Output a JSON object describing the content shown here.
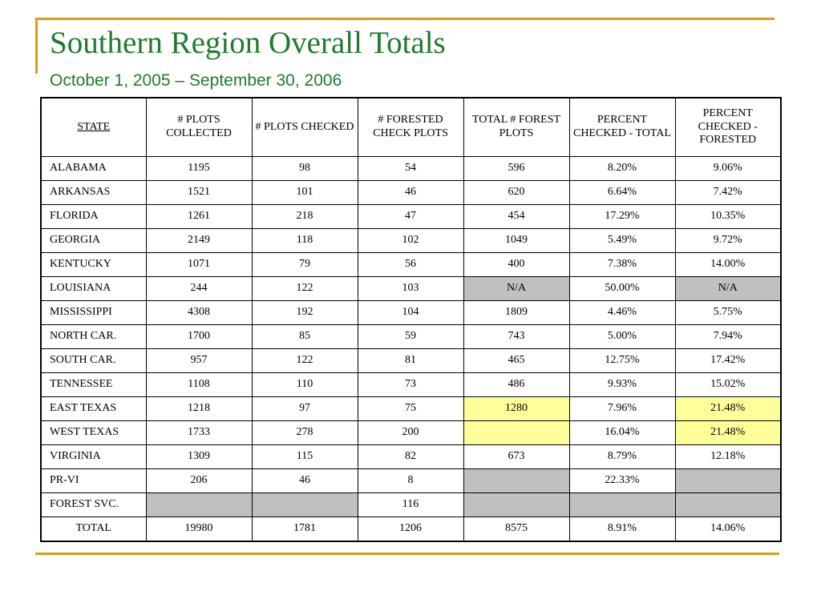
{
  "title": "Southern Region Overall Totals",
  "subtitle": "October 1, 2005 – September 30, 2006",
  "colors": {
    "title": "#1f7a2e",
    "accent_rule": "#d4a017",
    "gray_cell": "#c0c0c0",
    "yellow_cell": "#ffff99"
  },
  "table": {
    "headers": [
      "STATE",
      "# PLOTS COLLECTED",
      "# PLOTS CHECKED",
      "# FORESTED CHECK PLOTS",
      "TOTAL # FOREST PLOTS",
      "PERCENT CHECKED - TOTAL",
      "PERCENT CHECKED - FORESTED"
    ],
    "rows": [
      [
        "ALABAMA",
        "1195",
        "98",
        "54",
        "596",
        "8.20%",
        "9.06%"
      ],
      [
        "ARKANSAS",
        "1521",
        "101",
        "46",
        "620",
        "6.64%",
        "7.42%"
      ],
      [
        "FLORIDA",
        "1261",
        "218",
        "47",
        "454",
        "17.29%",
        "10.35%"
      ],
      [
        "GEORGIA",
        "2149",
        "118",
        "102",
        "1049",
        "5.49%",
        "9.72%"
      ],
      [
        "KENTUCKY",
        "1071",
        "79",
        "56",
        "400",
        "7.38%",
        "14.00%"
      ],
      [
        "LOUISIANA",
        "244",
        "122",
        "103",
        "N/A",
        "50.00%",
        "N/A"
      ],
      [
        "MISSISSIPPI",
        "4308",
        "192",
        "104",
        "1809",
        "4.46%",
        "5.75%"
      ],
      [
        "NORTH CAR.",
        "1700",
        "85",
        "59",
        "743",
        "5.00%",
        "7.94%"
      ],
      [
        "SOUTH CAR.",
        "957",
        "122",
        "81",
        "465",
        "12.75%",
        "17.42%"
      ],
      [
        "TENNESSEE",
        "1108",
        "110",
        "73",
        "486",
        "9.93%",
        "15.02%"
      ],
      [
        "EAST TEXAS",
        "1218",
        "97",
        "75",
        "1280",
        "7.96%",
        "21.48%"
      ],
      [
        "WEST TEXAS",
        "1733",
        "278",
        "200",
        "",
        "16.04%",
        "21.48%"
      ],
      [
        "VIRGINIA",
        "1309",
        "115",
        "82",
        "673",
        "8.79%",
        "12.18%"
      ],
      [
        "PR-VI",
        "206",
        "46",
        "8",
        "",
        "22.33%",
        ""
      ],
      [
        "FOREST SVC.",
        "",
        "",
        "116",
        "",
        "",
        ""
      ],
      [
        "TOTAL",
        "19980",
        "1781",
        "1206",
        "8575",
        "8.91%",
        "14.06%"
      ]
    ],
    "cell_highlights": [
      {
        "row": 5,
        "col": 4,
        "color": "gray"
      },
      {
        "row": 5,
        "col": 6,
        "color": "gray"
      },
      {
        "row": 10,
        "col": 4,
        "color": "yellow"
      },
      {
        "row": 10,
        "col": 6,
        "color": "yellow"
      },
      {
        "row": 11,
        "col": 4,
        "color": "yellow"
      },
      {
        "row": 11,
        "col": 6,
        "color": "yellow"
      },
      {
        "row": 13,
        "col": 4,
        "color": "gray"
      },
      {
        "row": 13,
        "col": 6,
        "color": "gray"
      },
      {
        "row": 14,
        "col": 1,
        "color": "gray"
      },
      {
        "row": 14,
        "col": 2,
        "color": "gray"
      },
      {
        "row": 14,
        "col": 4,
        "color": "gray"
      },
      {
        "row": 14,
        "col": 5,
        "color": "gray"
      },
      {
        "row": 14,
        "col": 6,
        "color": "gray"
      }
    ]
  }
}
